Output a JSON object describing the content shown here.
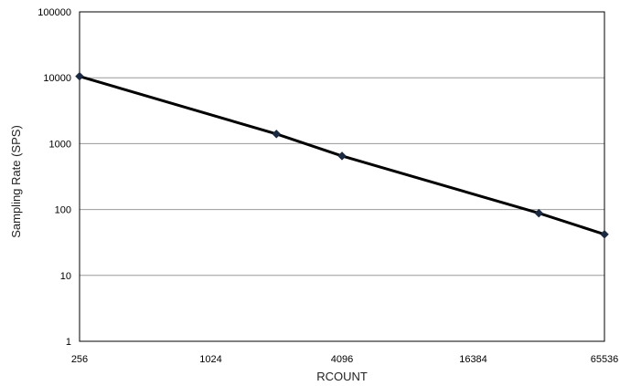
{
  "chart_data": {
    "type": "line",
    "xlabel": "RCOUNT",
    "ylabel": "Sampling Rate (SPS)",
    "x_scale": "log2",
    "y_scale": "log10",
    "xlim": [
      256,
      65536
    ],
    "ylim": [
      1,
      100000
    ],
    "x_ticks": [
      "256",
      "1024",
      "4096",
      "16384",
      "65536"
    ],
    "y_ticks": [
      "1",
      "10",
      "100",
      "1000",
      "10000",
      "100000"
    ],
    "grid": "horizontal",
    "legend": "none",
    "series": [
      {
        "x": [
          256,
          2048,
          4096,
          32768,
          65536
        ],
        "y": [
          10500,
          1400,
          650,
          88,
          42
        ],
        "marker": "diamond",
        "color": "#000000",
        "marker_color": "#1b2a40"
      }
    ]
  }
}
